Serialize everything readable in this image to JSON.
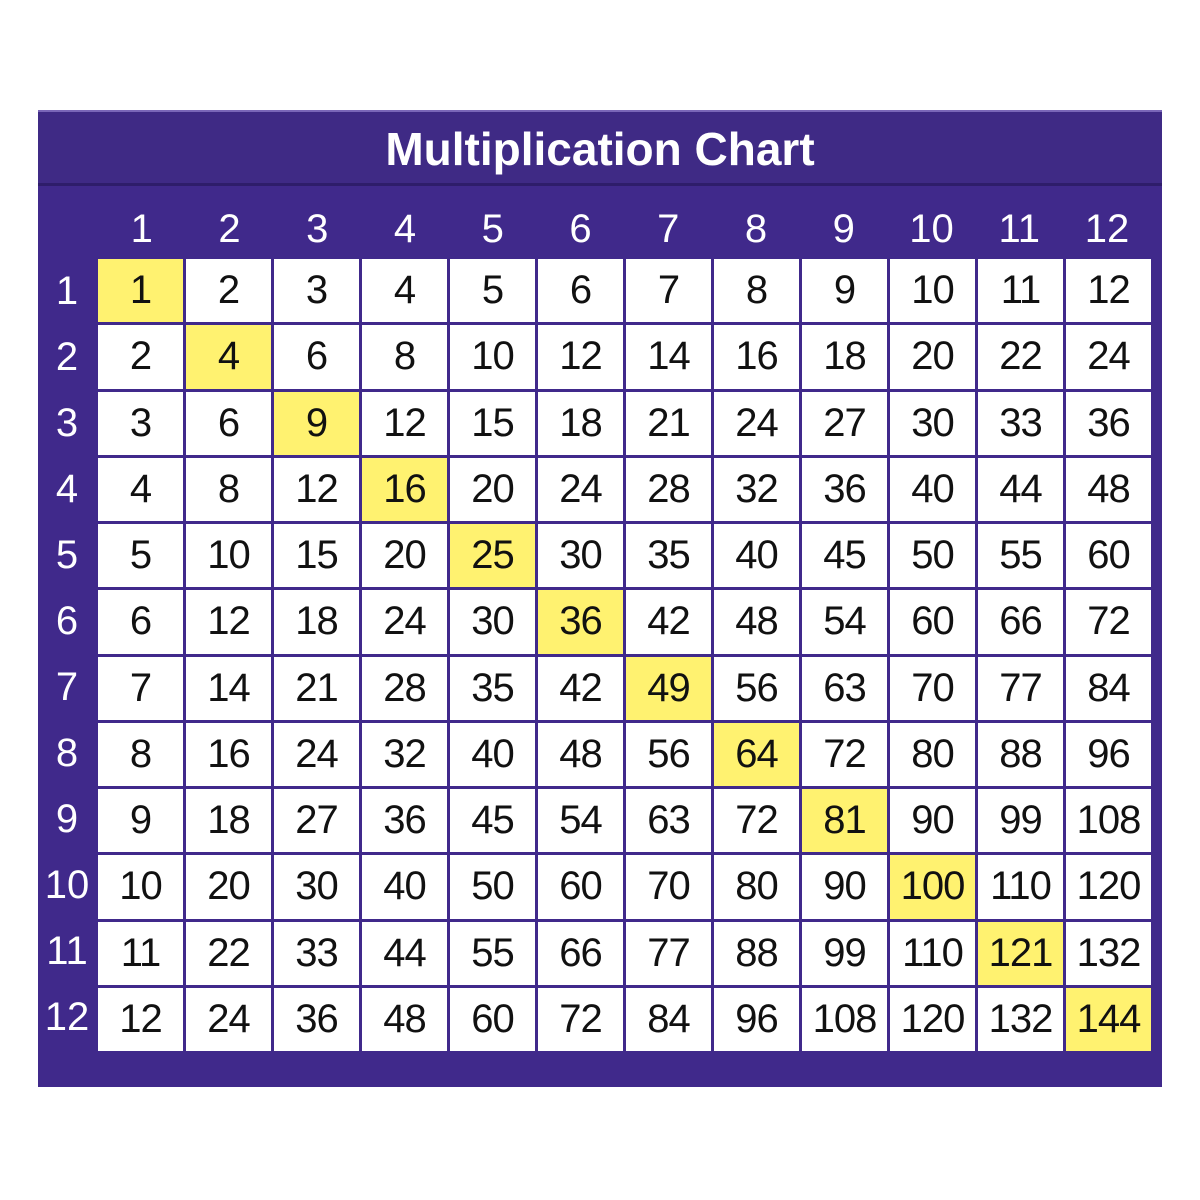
{
  "chart_data": {
    "type": "table",
    "title": "Multiplication Chart",
    "column_headers": [
      "1",
      "2",
      "3",
      "4",
      "5",
      "6",
      "7",
      "8",
      "9",
      "10",
      "11",
      "12"
    ],
    "row_headers": [
      "1",
      "2",
      "3",
      "4",
      "5",
      "6",
      "7",
      "8",
      "9",
      "10",
      "11",
      "12"
    ],
    "rows": [
      [
        1,
        2,
        3,
        4,
        5,
        6,
        7,
        8,
        9,
        10,
        11,
        12
      ],
      [
        2,
        4,
        6,
        8,
        10,
        12,
        14,
        16,
        18,
        20,
        22,
        24
      ],
      [
        3,
        6,
        9,
        12,
        15,
        18,
        21,
        24,
        27,
        30,
        33,
        36
      ],
      [
        4,
        8,
        12,
        16,
        20,
        24,
        28,
        32,
        36,
        40,
        44,
        48
      ],
      [
        5,
        10,
        15,
        20,
        25,
        30,
        35,
        40,
        45,
        50,
        55,
        60
      ],
      [
        6,
        12,
        18,
        24,
        30,
        36,
        42,
        48,
        54,
        60,
        66,
        72
      ],
      [
        7,
        14,
        21,
        28,
        35,
        42,
        49,
        56,
        63,
        70,
        77,
        84
      ],
      [
        8,
        16,
        24,
        32,
        40,
        48,
        56,
        64,
        72,
        80,
        88,
        96
      ],
      [
        9,
        18,
        27,
        36,
        45,
        54,
        63,
        72,
        81,
        90,
        99,
        108
      ],
      [
        10,
        20,
        30,
        40,
        50,
        60,
        70,
        80,
        90,
        100,
        110,
        120
      ],
      [
        11,
        22,
        33,
        44,
        55,
        66,
        77,
        88,
        99,
        110,
        121,
        132
      ],
      [
        12,
        24,
        36,
        48,
        60,
        72,
        84,
        96,
        108,
        120,
        132,
        144
      ]
    ],
    "highlight": "diagonal (squares)",
    "colors": {
      "background": "#40298b",
      "title_bar": "#3f2a85",
      "cell": "#ffffff",
      "highlight": "#fff270",
      "header_text": "#ffffff",
      "cell_text": "#111111"
    }
  }
}
